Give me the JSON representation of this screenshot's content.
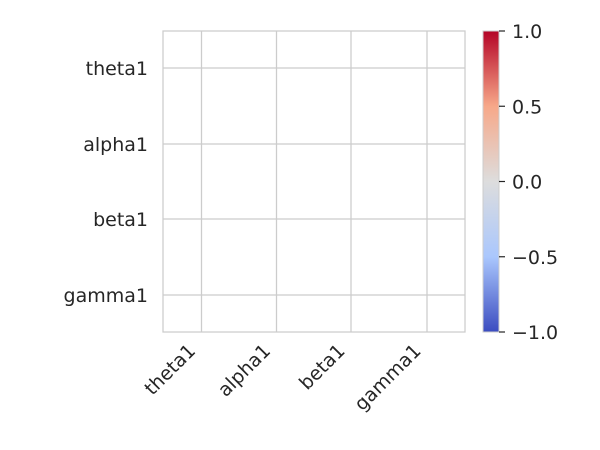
{
  "chart_data": {
    "type": "heatmap",
    "title": "",
    "xlabel": "",
    "ylabel": "",
    "x_categories": [
      "theta1",
      "alpha1",
      "beta1",
      "gamma1"
    ],
    "y_categories": [
      "theta1",
      "alpha1",
      "beta1",
      "gamma1"
    ],
    "values": [
      [
        null,
        null,
        null,
        null
      ],
      [
        null,
        null,
        null,
        null
      ],
      [
        null,
        null,
        null,
        null
      ],
      [
        null,
        null,
        null,
        null
      ]
    ],
    "grid": true,
    "colormap": "coolwarm",
    "colorbar": {
      "vmin": -1.0,
      "vmax": 1.0,
      "ticks": [
        1.0,
        0.5,
        0.0,
        -0.5,
        -1.0
      ],
      "tick_labels": [
        "1.0",
        "0.5",
        "0.0",
        "−0.5",
        "−1.0"
      ],
      "colors": [
        "#b40426",
        "#f7a889",
        "#dddddd",
        "#aac7fd",
        "#3b4cc0"
      ],
      "placement": "right"
    }
  }
}
